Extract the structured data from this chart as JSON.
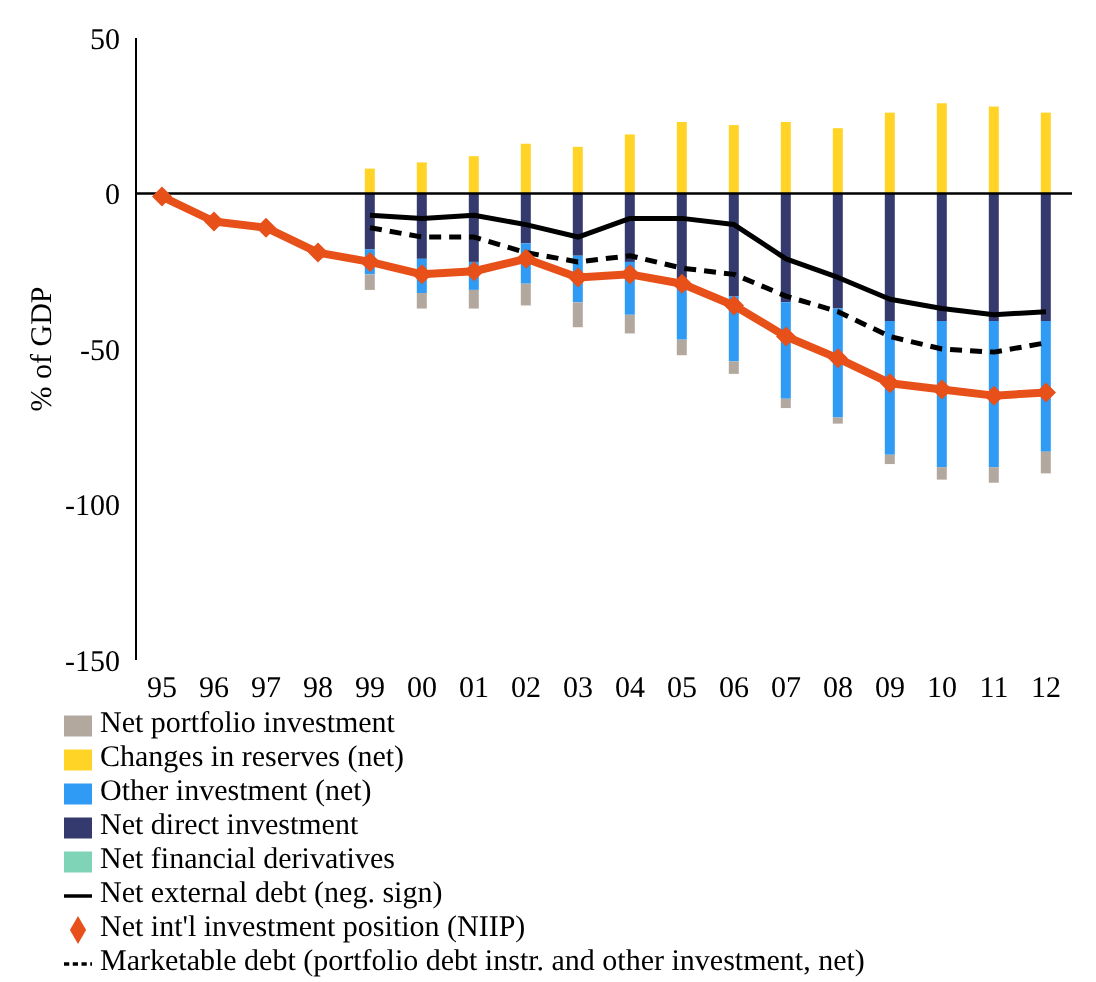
{
  "chart_data": {
    "type": "bar",
    "ylabel": "% of GDP",
    "categories": [
      "95",
      "96",
      "97",
      "98",
      "99",
      "00",
      "01",
      "02",
      "03",
      "04",
      "05",
      "06",
      "07",
      "08",
      "09",
      "10",
      "11",
      "12"
    ],
    "ylim": [
      -150,
      50
    ],
    "yticks": [
      -150,
      -100,
      -50,
      0,
      50
    ],
    "ref_lines": [
      {
        "axis": "y",
        "value": 0,
        "color": "#000000"
      }
    ],
    "legend": "bottom",
    "stacked": true,
    "series": [
      {
        "name": "Net financial derivatives",
        "color": "#7fd4b8",
        "values": [
          null,
          null,
          null,
          null,
          null,
          null,
          null,
          null,
          null,
          null,
          null,
          null,
          null,
          null,
          null,
          null,
          null,
          null
        ]
      },
      {
        "name": "Net direct investment",
        "color": "#343a6e",
        "values": [
          null,
          null,
          null,
          null,
          -18,
          -21,
          -22,
          -16,
          -20,
          -22,
          -28,
          -33,
          -35,
          -37,
          -41,
          -41,
          -41,
          -41
        ]
      },
      {
        "name": "Other investment (net)",
        "color": "#2f9bf5",
        "values": [
          null,
          null,
          null,
          null,
          -8,
          -11,
          -9,
          -13,
          -15,
          -17,
          -19,
          -21,
          -31,
          -35,
          -43,
          -47,
          -47,
          -42
        ]
      },
      {
        "name": "Changes in reserves (net)",
        "color": "#ffd426",
        "values": [
          null,
          null,
          null,
          null,
          8,
          10,
          12,
          16,
          15,
          19,
          23,
          22,
          23,
          21,
          26,
          29,
          28,
          26
        ]
      },
      {
        "name": "Net portfolio investment",
        "color": "#b3a89e",
        "values": [
          null,
          null,
          null,
          null,
          -5,
          -5,
          -6,
          -7,
          -8,
          -6,
          -5,
          -4,
          -3,
          -2,
          -3,
          -4,
          -5,
          -7
        ]
      },
      {
        "name": "Net external debt (neg. sign)",
        "type": "line",
        "color": "#000000",
        "marker": "none",
        "line_style": "solid",
        "values": [
          null,
          null,
          null,
          null,
          -7,
          -8,
          -7,
          -10,
          -14,
          -8,
          -8,
          -10,
          -21,
          -27,
          -34,
          -37,
          -39,
          -38
        ]
      },
      {
        "name": "Net int'l investment position (NIIP)",
        "type": "line",
        "color": "#e8501a",
        "marker": "diamond",
        "line_style": "solid",
        "values": [
          -1,
          -9,
          -11,
          -19,
          -22,
          -26,
          -25,
          -21,
          -27,
          -26,
          -29,
          -36,
          -46,
          -53,
          -61,
          -63,
          -65,
          -64
        ]
      },
      {
        "name": "Marketable debt (portfolio debt instr. and other investment, net)",
        "type": "line",
        "color": "#000000",
        "marker": "none",
        "line_style": "dashed",
        "values": [
          null,
          null,
          null,
          null,
          -11,
          -14,
          -14,
          -19,
          -22,
          -20,
          -24,
          -26,
          -33,
          -38,
          -46,
          -50,
          -51,
          -48
        ]
      }
    ]
  }
}
